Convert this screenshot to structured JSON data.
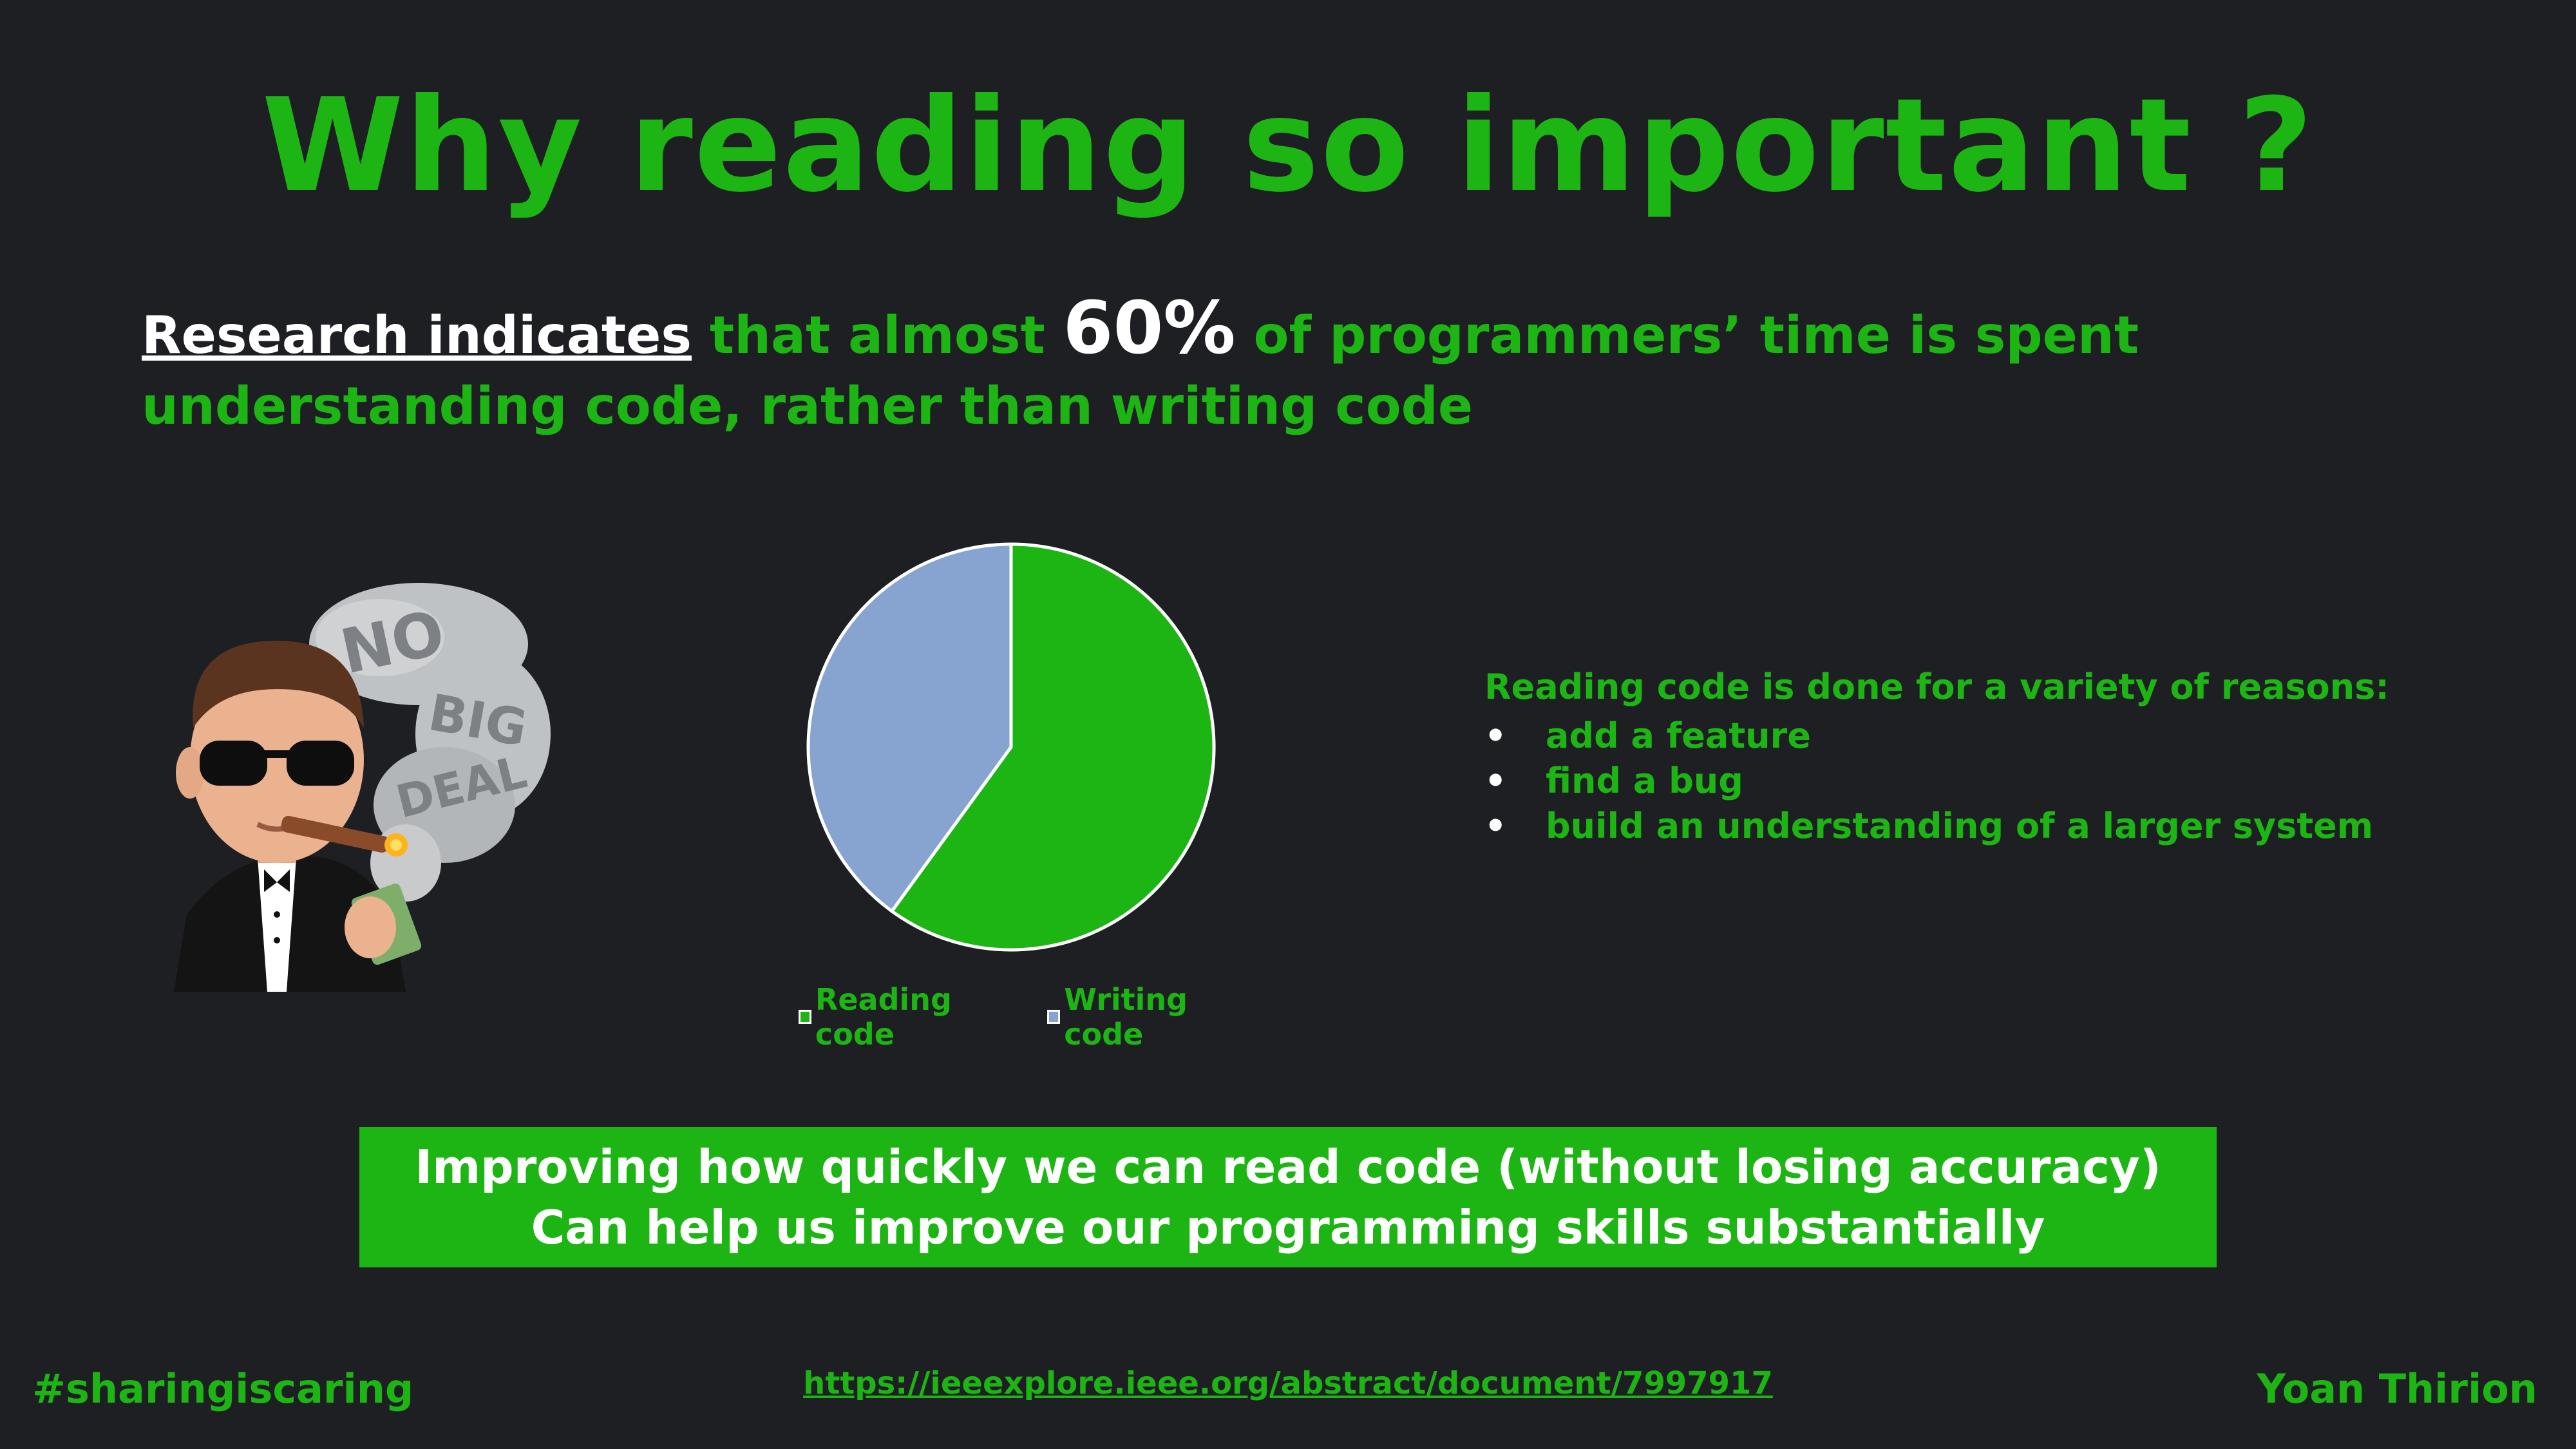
{
  "slide": {
    "title": "Why reading so important ?",
    "intro": {
      "highlight": "Research indicates",
      "part1": " that almost ",
      "percent": "60%",
      "part2": " of programmers’ time is spent understanding code, rather than writing code"
    },
    "reasons": {
      "heading": "Reading code is done for a variety of reasons:",
      "items": [
        "add a feature",
        "find a bug",
        "build an understanding of a larger system"
      ]
    },
    "banner": {
      "line1": "Improving how quickly we can read code (without losing accuracy)",
      "line2": "Can help us improve our programming skills substantially"
    },
    "footer": {
      "hashtag": "#sharingiscaring",
      "link": "https://ieeexplore.ieee.org/abstract/document/7997917",
      "author": "Yoan Thirion"
    },
    "avatar_text": [
      "NO",
      "BIG",
      "DEAL"
    ]
  },
  "chart_data": {
    "type": "pie",
    "categories": [
      "Reading code",
      "Writing code"
    ],
    "values": [
      60,
      40
    ],
    "colors": [
      "#1db514",
      "#87a3d0"
    ],
    "legend": "bottom"
  }
}
